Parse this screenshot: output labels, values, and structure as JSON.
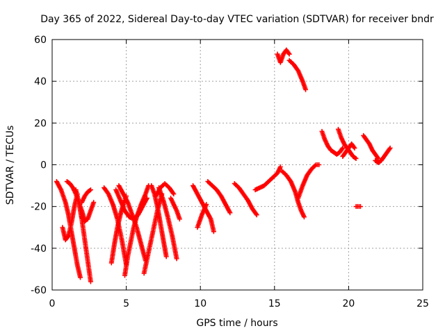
{
  "chart_data": {
    "type": "scatter",
    "title": "Day 365 of 2022, Sidereal Day-to-day VTEC variation (SDTVAR) for receiver bndr",
    "xlabel": "GPS time / hours",
    "ylabel": "SDTVAR / TECUs",
    "xlim": [
      0,
      25
    ],
    "ylim": [
      -60,
      60
    ],
    "xticks": [
      0,
      5,
      10,
      15,
      20,
      25
    ],
    "yticks": [
      -60,
      -40,
      -20,
      0,
      20,
      40,
      60
    ],
    "grid": true,
    "marker": "+",
    "color": "#ff0000",
    "series": [
      {
        "x": [
          0.3,
          0.6,
          0.9,
          1.1,
          1.3,
          1.5,
          1.7,
          1.9
        ],
        "y": [
          -8,
          -12,
          -18,
          -24,
          -32,
          -40,
          -48,
          -54
        ]
      },
      {
        "x": [
          0.7,
          0.9,
          1.1,
          1.3,
          1.5,
          1.7
        ],
        "y": [
          -30,
          -36,
          -34,
          -28,
          -20,
          -14
        ]
      },
      {
        "x": [
          1.0,
          1.2,
          1.4,
          1.6,
          1.8,
          2.0,
          2.2
        ],
        "y": [
          -8,
          -9,
          -11,
          -14,
          -18,
          -22,
          -27
        ]
      },
      {
        "x": [
          1.6,
          1.8,
          2.0,
          2.2,
          2.4,
          2.6
        ],
        "y": [
          -12,
          -18,
          -26,
          -36,
          -46,
          -56
        ]
      },
      {
        "x": [
          2.0,
          2.2,
          2.4,
          2.6,
          2.8
        ],
        "y": [
          -25,
          -27,
          -26,
          -22,
          -18
        ]
      },
      {
        "x": [
          2.0,
          2.2,
          2.4,
          2.6
        ],
        "y": [
          -18,
          -15,
          -13,
          -12
        ]
      },
      {
        "x": [
          3.5,
          3.8,
          4.1,
          4.4,
          4.7,
          5.0
        ],
        "y": [
          -11,
          -14,
          -19,
          -26,
          -36,
          -48
        ]
      },
      {
        "x": [
          4.0,
          4.2,
          4.4,
          4.6,
          4.8,
          5.0
        ],
        "y": [
          -47,
          -38,
          -30,
          -24,
          -19,
          -15
        ]
      },
      {
        "x": [
          4.3,
          4.6,
          4.9,
          5.2,
          5.5,
          5.8,
          6.1,
          6.4
        ],
        "y": [
          -12,
          -17,
          -22,
          -25,
          -26,
          -24,
          -20,
          -16
        ]
      },
      {
        "x": [
          4.5,
          4.8,
          5.1,
          5.4,
          5.7,
          6.0,
          6.3
        ],
        "y": [
          -10,
          -14,
          -18,
          -24,
          -30,
          -38,
          -46
        ]
      },
      {
        "x": [
          4.9,
          5.1,
          5.3,
          5.5,
          5.7,
          6.0,
          6.3,
          6.5
        ],
        "y": [
          -53,
          -44,
          -37,
          -30,
          -25,
          -19,
          -14,
          -10
        ]
      },
      {
        "x": [
          6.2,
          6.5,
          6.8,
          7.1,
          7.4
        ],
        "y": [
          -52,
          -42,
          -32,
          -22,
          -14
        ]
      },
      {
        "x": [
          6.7,
          6.9,
          7.1,
          7.3,
          7.5,
          7.7
        ],
        "y": [
          -10,
          -14,
          -20,
          -28,
          -36,
          -44
        ]
      },
      {
        "x": [
          7.0,
          7.3,
          7.6,
          7.9,
          8.2
        ],
        "y": [
          -15,
          -11,
          -9,
          -11,
          -14
        ]
      },
      {
        "x": [
          7.2,
          7.5,
          7.8,
          8.1,
          8.4
        ],
        "y": [
          -11,
          -17,
          -25,
          -34,
          -45
        ]
      },
      {
        "x": [
          8.0,
          8.2,
          8.4,
          8.6
        ],
        "y": [
          -16,
          -19,
          -22,
          -26
        ]
      },
      {
        "x": [
          9.5,
          9.8,
          10.1,
          10.4,
          10.7,
          10.9
        ],
        "y": [
          -10,
          -14,
          -18,
          -22,
          -26,
          -32
        ]
      },
      {
        "x": [
          9.8,
          10.1,
          10.4
        ],
        "y": [
          -30,
          -24,
          -19
        ]
      },
      {
        "x": [
          10.5,
          10.8,
          11.1,
          11.4,
          11.7,
          12.0
        ],
        "y": [
          -8,
          -10,
          -12,
          -15,
          -19,
          -23
        ]
      },
      {
        "x": [
          12.3,
          12.6,
          12.9,
          13.2,
          13.5,
          13.8
        ],
        "y": [
          -9,
          -11,
          -14,
          -17,
          -21,
          -24
        ]
      },
      {
        "x": [
          13.7,
          14.0,
          14.3,
          14.6,
          14.9,
          15.2,
          15.4
        ],
        "y": [
          -12,
          -11,
          -10,
          -8,
          -6,
          -4,
          -1
        ]
      },
      {
        "x": [
          15.2,
          15.4,
          15.6,
          15.8,
          16.0
        ],
        "y": [
          53,
          49,
          53,
          55,
          53
        ]
      },
      {
        "x": [
          16.0,
          16.3,
          16.6,
          16.9,
          17.1
        ],
        "y": [
          50,
          48,
          45,
          40,
          36
        ]
      },
      {
        "x": [
          15.5,
          15.8,
          16.1,
          16.4,
          16.6,
          16.8,
          17.0
        ],
        "y": [
          -3,
          -5,
          -8,
          -13,
          -18,
          -22,
          -25
        ]
      },
      {
        "x": [
          16.6,
          16.9,
          17.2,
          17.5,
          17.8,
          18.0
        ],
        "y": [
          -16,
          -10,
          -5,
          -2,
          0,
          0
        ]
      },
      {
        "x": [
          18.2,
          18.4,
          18.6,
          18.8,
          19.0,
          19.2,
          19.4,
          19.6
        ],
        "y": [
          16,
          12,
          9,
          7,
          6,
          5,
          6,
          8
        ]
      },
      {
        "x": [
          19.3,
          19.5,
          19.7,
          19.9,
          20.1,
          20.3,
          20.5
        ],
        "y": [
          17,
          13,
          10,
          8,
          6,
          4,
          3
        ]
      },
      {
        "x": [
          19.6,
          19.8,
          20.0,
          20.2,
          20.4
        ],
        "y": [
          4,
          6,
          8,
          10,
          8
        ]
      },
      {
        "x": [
          20.5,
          20.6,
          20.8
        ],
        "y": [
          -20,
          -20,
          -20
        ]
      },
      {
        "x": [
          21.0,
          21.2,
          21.4,
          21.6,
          21.8,
          22.0
        ],
        "y": [
          14,
          12,
          10,
          7,
          5,
          3
        ]
      },
      {
        "x": [
          21.8,
          22.0,
          22.2,
          22.4,
          22.6,
          22.8
        ],
        "y": [
          2,
          1,
          2,
          4,
          6,
          8
        ]
      }
    ]
  }
}
